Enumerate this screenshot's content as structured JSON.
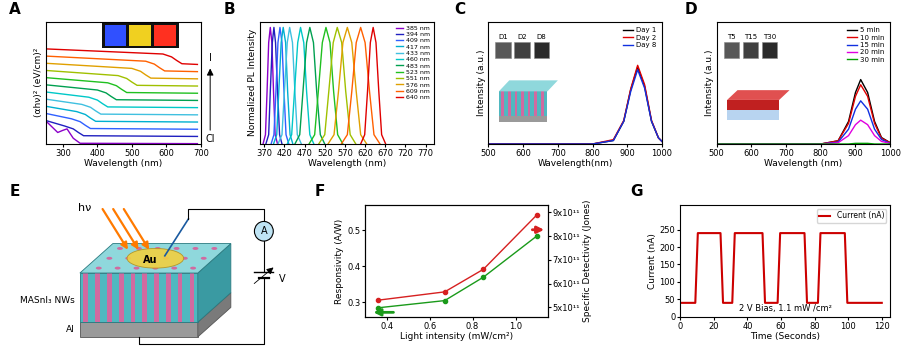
{
  "chart_data": [
    {
      "type": "line",
      "title": "A",
      "xlabel": "Wavelength (nm)",
      "ylabel": "(αhν)² (eV/cm)²",
      "xlim": [
        250,
        700
      ],
      "xticks": [
        300,
        400,
        500,
        600,
        700
      ],
      "ylim": [
        0,
        17
      ],
      "tick_labels": "x",
      "annotations": [
        "I",
        "Cl"
      ],
      "series": [
        {
          "color": "#8b00c9",
          "x": [
            255,
            285,
            300,
            312,
            330,
            350,
            690
          ],
          "values": [
            3.0,
            1.6,
            1.9,
            2.1,
            0.8,
            0.1,
            0.05
          ]
        },
        {
          "color": "#2020c0",
          "x": [
            255,
            305,
            330,
            345,
            360,
            690
          ],
          "values": [
            3.2,
            2.5,
            2.1,
            1.6,
            1.15,
            1.05
          ]
        },
        {
          "color": "#3060ff",
          "x": [
            255,
            325,
            350,
            365,
            380,
            690
          ],
          "values": [
            4.2,
            3.5,
            3.1,
            2.6,
            2.15,
            2.05
          ]
        },
        {
          "color": "#00b0d0",
          "x": [
            255,
            340,
            365,
            380,
            395,
            690
          ],
          "values": [
            5.2,
            4.5,
            4.1,
            3.6,
            3.15,
            3.05
          ]
        },
        {
          "color": "#40c0e0",
          "x": [
            255,
            355,
            380,
            395,
            410,
            690
          ],
          "values": [
            6.2,
            5.5,
            5.1,
            4.6,
            4.15,
            4.05
          ]
        },
        {
          "color": "#00c8c8",
          "x": [
            255,
            375,
            400,
            415,
            430,
            690
          ],
          "values": [
            7.2,
            6.5,
            6.1,
            5.6,
            5.15,
            5.05
          ]
        },
        {
          "color": "#00a050",
          "x": [
            255,
            400,
            425,
            440,
            455,
            690
          ],
          "values": [
            8.2,
            7.5,
            7.1,
            6.6,
            6.15,
            6.05
          ]
        },
        {
          "color": "#20c020",
          "x": [
            255,
            430,
            455,
            470,
            485,
            690
          ],
          "values": [
            9.2,
            8.5,
            8.1,
            7.6,
            7.15,
            7.05
          ]
        },
        {
          "color": "#a0c000",
          "x": [
            255,
            460,
            485,
            500,
            515,
            690
          ],
          "values": [
            10.2,
            9.5,
            9.1,
            8.6,
            8.15,
            8.05
          ]
        },
        {
          "color": "#e0a000",
          "x": [
            255,
            500,
            525,
            540,
            555,
            690
          ],
          "values": [
            11.2,
            10.5,
            10.1,
            9.6,
            9.15,
            9.05
          ]
        },
        {
          "color": "#ff6000",
          "x": [
            255,
            540,
            565,
            580,
            595,
            690
          ],
          "values": [
            12.2,
            11.5,
            11.1,
            10.6,
            10.15,
            10.05
          ]
        },
        {
          "color": "#e00000",
          "x": [
            255,
            590,
            615,
            630,
            645,
            690
          ],
          "values": [
            13.2,
            12.5,
            12.1,
            11.6,
            11.15,
            11.05
          ]
        }
      ]
    },
    {
      "type": "line",
      "title": "B",
      "xlabel": "Wavelength (nm)",
      "ylabel": "Normalized PL Intensity",
      "xlim": [
        360,
        790
      ],
      "xticks": [
        370,
        420,
        470,
        520,
        570,
        620,
        670,
        720,
        770
      ],
      "ylim": [
        0,
        1.05
      ],
      "tick_labels": "x",
      "legend": "upper right",
      "series": [
        {
          "name": "385 nm",
          "color": "#8b00c9",
          "x": [
            367,
            373,
            377,
            381,
            385,
            389,
            393,
            397,
            403
          ],
          "values": [
            0,
            0.08,
            0.45,
            0.87,
            1,
            0.87,
            0.45,
            0.08,
            0
          ]
        },
        {
          "name": "394 nm",
          "color": "#2020c0",
          "x": [
            374,
            381,
            385,
            390,
            394,
            398,
            403,
            408,
            414
          ],
          "values": [
            0,
            0.08,
            0.45,
            0.87,
            1,
            0.87,
            0.45,
            0.08,
            0
          ]
        },
        {
          "name": "409 nm",
          "color": "#3060ff",
          "x": [
            387,
            394,
            399,
            404,
            409,
            414,
            419,
            424,
            431
          ],
          "values": [
            0,
            0.08,
            0.45,
            0.87,
            1,
            0.87,
            0.45,
            0.08,
            0
          ]
        },
        {
          "name": "417 nm",
          "color": "#00b0d0",
          "x": [
            393,
            401,
            406,
            412,
            417,
            423,
            428,
            434,
            441
          ],
          "values": [
            0,
            0.08,
            0.45,
            0.87,
            1,
            0.87,
            0.45,
            0.08,
            0
          ]
        },
        {
          "name": "433 nm",
          "color": "#40c0e0",
          "x": [
            404,
            414,
            420,
            427,
            433,
            440,
            446,
            452,
            462
          ],
          "values": [
            0,
            0.08,
            0.45,
            0.87,
            1,
            0.87,
            0.45,
            0.08,
            0
          ]
        },
        {
          "name": "460 nm",
          "color": "#00c8c8",
          "x": [
            427,
            438,
            445,
            453,
            460,
            468,
            475,
            483,
            493
          ],
          "values": [
            0,
            0.08,
            0.45,
            0.87,
            1,
            0.87,
            0.45,
            0.08,
            0
          ]
        },
        {
          "name": "483 nm",
          "color": "#00a050",
          "x": [
            446,
            458,
            466,
            475,
            483,
            492,
            500,
            509,
            520
          ],
          "values": [
            0,
            0.08,
            0.45,
            0.87,
            1,
            0.87,
            0.45,
            0.08,
            0
          ]
        },
        {
          "name": "523 nm",
          "color": "#20c020",
          "x": [
            481,
            495,
            504,
            514,
            523,
            533,
            542,
            552,
            565
          ],
          "values": [
            0,
            0.08,
            0.45,
            0.87,
            1,
            0.87,
            0.45,
            0.08,
            0
          ]
        },
        {
          "name": "551 nm",
          "color": "#a0c000",
          "x": [
            505,
            520,
            530,
            541,
            551,
            562,
            572,
            583,
            597
          ],
          "values": [
            0,
            0.08,
            0.45,
            0.87,
            1,
            0.87,
            0.45,
            0.08,
            0
          ]
        },
        {
          "name": "576 nm",
          "color": "#e0a000",
          "x": [
            528,
            543,
            554,
            565,
            576,
            587,
            598,
            609,
            624
          ],
          "values": [
            0,
            0.08,
            0.45,
            0.87,
            1,
            0.87,
            0.45,
            0.08,
            0
          ]
        },
        {
          "name": "609 nm",
          "color": "#ff6000",
          "x": [
            561,
            576,
            587,
            598,
            609,
            620,
            631,
            642,
            657
          ],
          "values": [
            0,
            0.08,
            0.45,
            0.87,
            1,
            0.87,
            0.45,
            0.08,
            0
          ]
        },
        {
          "name": "640 nm",
          "color": "#e00000",
          "x": [
            609,
            619,
            626,
            633,
            640,
            647,
            654,
            661,
            671
          ],
          "values": [
            0,
            0.08,
            0.45,
            0.87,
            1,
            0.87,
            0.45,
            0.08,
            0
          ]
        }
      ]
    },
    {
      "type": "line",
      "title": "C",
      "xlabel": "Wavelength(nm)",
      "ylabel": "Intensity (a.u.)",
      "xlim": [
        500,
        1000
      ],
      "xticks": [
        500,
        600,
        700,
        800,
        900,
        1000
      ],
      "ylim": [
        0,
        1.4
      ],
      "tick_labels": "x",
      "legend": "upper right",
      "annotations": [
        "D1",
        "D2",
        "D8"
      ],
      "series": [
        {
          "name": "Day 1",
          "color": "#000000",
          "x": [
            500,
            800,
            860,
            890,
            910,
            930,
            950,
            970,
            990,
            1000
          ],
          "values": [
            0,
            0,
            0.04,
            0.26,
            0.62,
            0.88,
            0.66,
            0.26,
            0.07,
            0.03
          ]
        },
        {
          "name": "Day 2",
          "color": "#e00000",
          "x": [
            500,
            800,
            860,
            890,
            910,
            930,
            950,
            970,
            990,
            1000
          ],
          "values": [
            0,
            0,
            0.05,
            0.27,
            0.63,
            0.9,
            0.68,
            0.27,
            0.07,
            0.03
          ]
        },
        {
          "name": "Day 8",
          "color": "#1030e0",
          "x": [
            500,
            800,
            860,
            890,
            910,
            930,
            950,
            970,
            990,
            1000
          ],
          "values": [
            0,
            0,
            0.04,
            0.26,
            0.6,
            0.85,
            0.64,
            0.26,
            0.07,
            0.03
          ]
        }
      ]
    },
    {
      "type": "line",
      "title": "D",
      "xlabel": "Wavelength (nm)",
      "ylabel": "Intensity (a.u.)",
      "xlim": [
        500,
        1000
      ],
      "xticks": [
        500,
        600,
        700,
        800,
        900,
        1000
      ],
      "ylim": [
        0,
        1.9
      ],
      "tick_labels": "x",
      "legend": "upper right",
      "annotations": [
        "T5",
        "T15",
        "T30"
      ],
      "series": [
        {
          "name": "5 min",
          "color": "#000000",
          "x": [
            500,
            800,
            850,
            880,
            900,
            915,
            935,
            955,
            975,
            1000
          ],
          "values": [
            0,
            0,
            0.05,
            0.35,
            0.8,
            1,
            0.8,
            0.35,
            0.1,
            0.02
          ]
        },
        {
          "name": "10 min",
          "color": "#e00000",
          "x": [
            500,
            800,
            850,
            880,
            900,
            915,
            935,
            955,
            975,
            1000
          ],
          "values": [
            0,
            0,
            0.05,
            0.32,
            0.74,
            0.92,
            0.74,
            0.32,
            0.09,
            0.02
          ]
        },
        {
          "name": "15 min",
          "color": "#1030e0",
          "x": [
            500,
            800,
            850,
            880,
            900,
            915,
            935,
            955,
            975,
            1000
          ],
          "values": [
            0,
            0,
            0.03,
            0.23,
            0.54,
            0.67,
            0.54,
            0.23,
            0.07,
            0.01
          ]
        },
        {
          "name": "20 min",
          "color": "#e000e0",
          "x": [
            500,
            800,
            850,
            880,
            900,
            915,
            935,
            955,
            975,
            1000
          ],
          "values": [
            0,
            0,
            0.02,
            0.13,
            0.3,
            0.37,
            0.3,
            0.13,
            0.04,
            0.01
          ]
        },
        {
          "name": "30 min",
          "color": "#00a000",
          "x": [
            500,
            800,
            850,
            880,
            900,
            915,
            935,
            955,
            975,
            1000
          ],
          "values": [
            0,
            0,
            0,
            0,
            0.01,
            0.01,
            0.01,
            0,
            0,
            0
          ]
        }
      ]
    },
    {
      "type": "diagram",
      "title": "E",
      "labels": {
        "light": "hν",
        "electrode": "Au",
        "meter": "A",
        "source": "V",
        "layer": "MASnI₃ NWs",
        "substrate": "Al"
      }
    },
    {
      "type": "line",
      "title": "F",
      "xlabel": "Light intensity (mW/cm²)",
      "ylabel": "Responsivity (A/W)",
      "y2label": "Specific Detectivity (Jones)",
      "xlim": [
        0.3,
        1.15
      ],
      "xticks": [
        0.4,
        0.6,
        0.8,
        1.0
      ],
      "ylim": [
        0.26,
        0.57
      ],
      "yticks": [
        0.3,
        0.4,
        0.5
      ],
      "y2lim": [
        460000000000.0,
        930000000000.0
      ],
      "y2ticks": [
        {
          "value": 500000000000.0,
          "label": "5x10¹¹"
        },
        {
          "value": 600000000000.0,
          "label": "6x10¹¹"
        },
        {
          "value": 700000000000.0,
          "label": "7x10¹¹"
        },
        {
          "value": 800000000000.0,
          "label": "8x10¹¹"
        },
        {
          "value": 900000000000.0,
          "label": "9x10¹¹"
        }
      ],
      "series": [
        {
          "color": "#1a9a1a",
          "marker": "o",
          "x": [
            0.36,
            0.67,
            0.85,
            1.1
          ],
          "values": [
            0.285,
            0.305,
            0.37,
            0.485
          ]
        },
        {
          "color": "#d62020",
          "marker": "o",
          "axis": "y2",
          "x": [
            0.36,
            0.67,
            0.85,
            1.1
          ],
          "values": [
            530000000000.0,
            565000000000.0,
            660000000000.0,
            890000000000.0
          ]
        }
      ]
    },
    {
      "type": "line",
      "title": "G",
      "xlabel": "Time (Seconds)",
      "ylabel": "Current (nA)",
      "xlim": [
        0,
        125
      ],
      "xticks": [
        0,
        20,
        40,
        60,
        80,
        100,
        120
      ],
      "ylim": [
        0,
        320
      ],
      "yticks": [
        0,
        50,
        100,
        150,
        200,
        250
      ],
      "legend": "upper right",
      "annotations": [
        "2 V Bias, 1.1 mW /cm²"
      ],
      "series": [
        {
          "name": "Current (nA)",
          "color": "#cc0000",
          "x": [
            0,
            9,
            10.5,
            24,
            25.5,
            31,
            32.5,
            49,
            50.5,
            58,
            59.5,
            74,
            75.5,
            82,
            83.5,
            98,
            99.5,
            120
          ],
          "values": [
            40,
            40,
            240,
            240,
            40,
            40,
            240,
            240,
            40,
            40,
            240,
            240,
            40,
            40,
            240,
            240,
            40,
            40
          ]
        }
      ]
    }
  ]
}
